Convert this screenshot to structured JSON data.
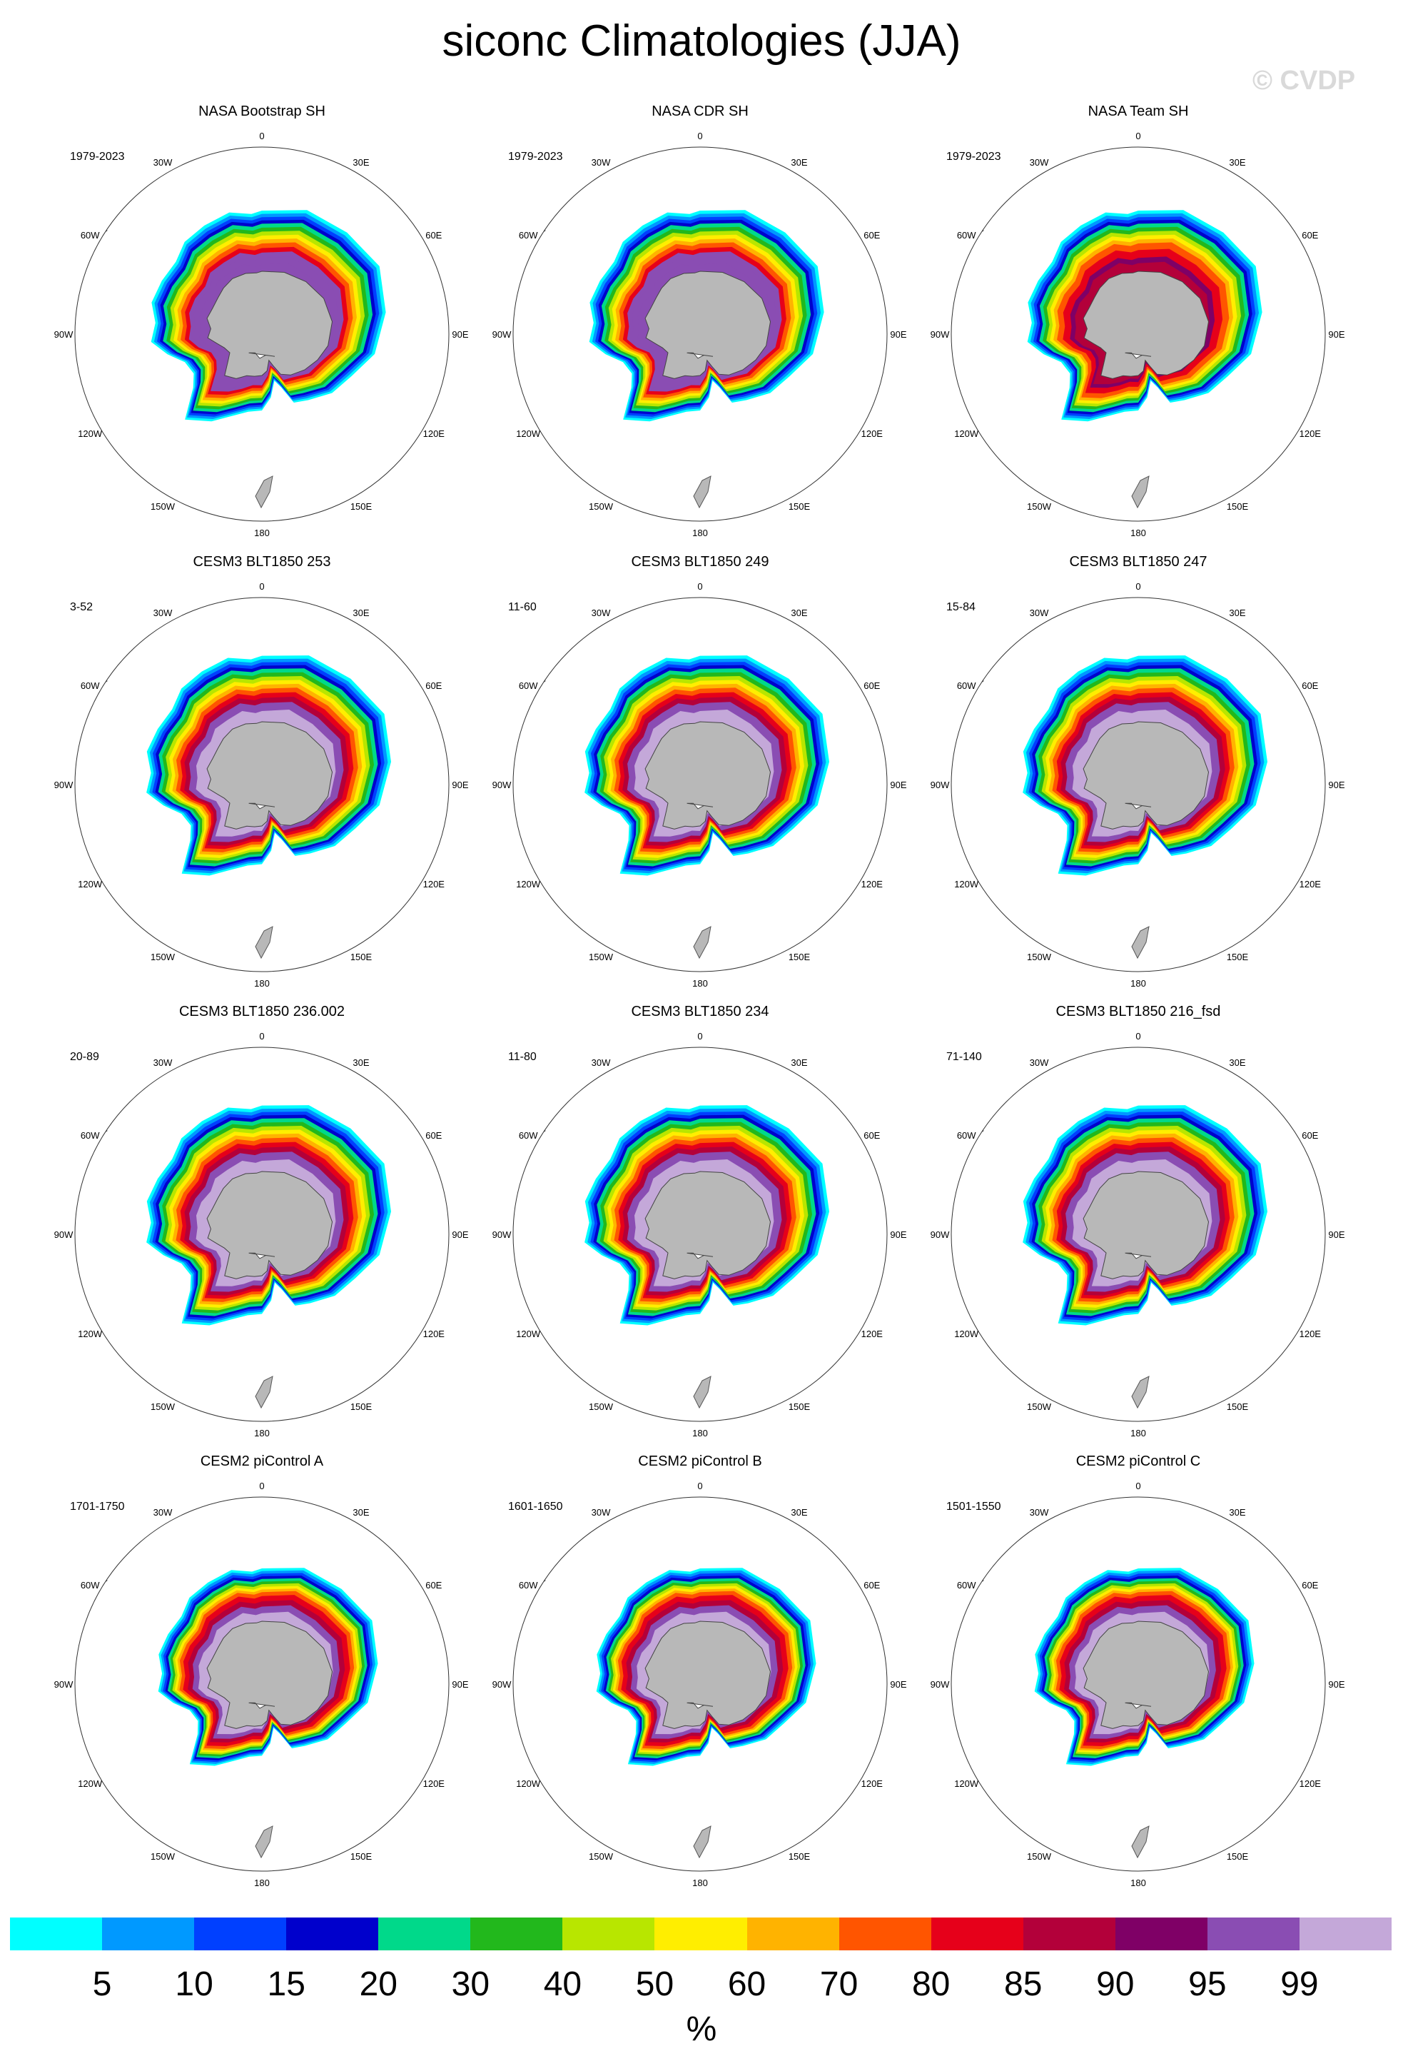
{
  "title": "siconc Climatologies (JJA)",
  "watermark": "© CVDP",
  "longitude_labels": [
    "0",
    "30E",
    "60E",
    "90E",
    "120E",
    "150E",
    "180",
    "150W",
    "120W",
    "90W",
    "60W",
    "30W"
  ],
  "panels": [
    {
      "title": "NASA Bootstrap SH",
      "period": "1979-2023",
      "style": "obs"
    },
    {
      "title": "NASA CDR SH",
      "period": "1979-2023",
      "style": "obs"
    },
    {
      "title": "NASA Team SH",
      "period": "1979-2023",
      "style": "team"
    },
    {
      "title": "CESM3 BLT1850 253",
      "period": "3-52",
      "style": "model"
    },
    {
      "title": "CESM3 BLT1850 249",
      "period": "11-60",
      "style": "model"
    },
    {
      "title": "CESM3 BLT1850 247",
      "period": "15-84",
      "style": "model"
    },
    {
      "title": "CESM3 BLT1850 236.002",
      "period": "20-89",
      "style": "model"
    },
    {
      "title": "CESM3 BLT1850 234",
      "period": "11-80",
      "style": "model"
    },
    {
      "title": "CESM3 BLT1850 216_fsd",
      "period": "71-140",
      "style": "model"
    },
    {
      "title": "CESM2 piControl A",
      "period": "1701-1750",
      "style": "cesm2"
    },
    {
      "title": "CESM2 piControl B",
      "period": "1601-1650",
      "style": "cesm2"
    },
    {
      "title": "CESM2 piControl C",
      "period": "1501-1550",
      "style": "cesm2"
    }
  ],
  "colorbar": {
    "colors": [
      "#00ffff",
      "#0099ff",
      "#0040ff",
      "#0000cc",
      "#00d98a",
      "#22b81c",
      "#b8e600",
      "#ffee00",
      "#ffb300",
      "#ff5500",
      "#e6001a",
      "#b3003a",
      "#7f0066",
      "#8a4db3",
      "#c4a8d9"
    ],
    "labels": [
      "5",
      "10",
      "15",
      "20",
      "30",
      "40",
      "50",
      "60",
      "70",
      "80",
      "85",
      "90",
      "95",
      "99"
    ],
    "units": "%"
  }
}
